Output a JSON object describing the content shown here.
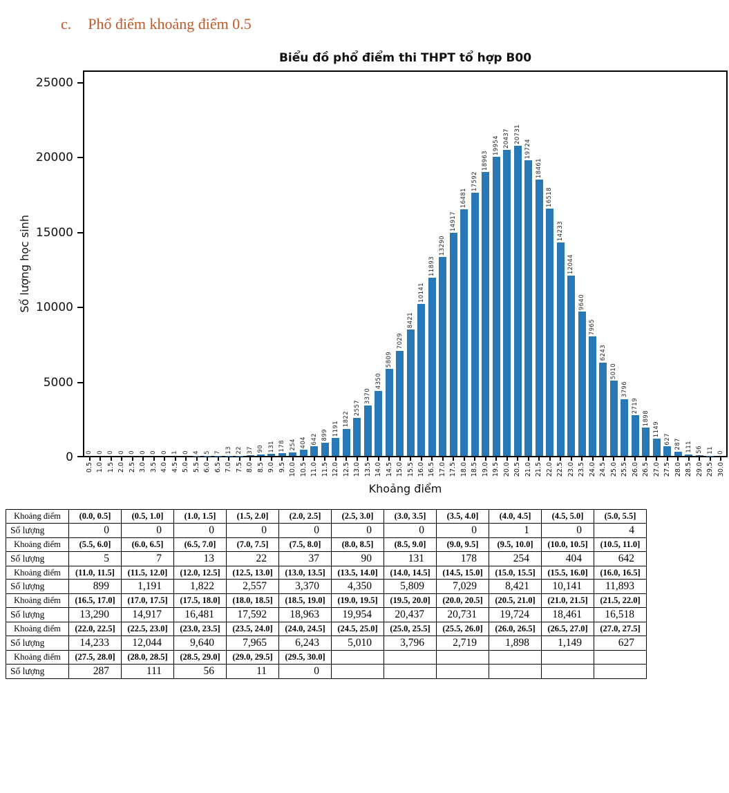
{
  "heading": {
    "index": "c.",
    "text": "Phổ điểm khoảng điểm 0.5"
  },
  "chart_data": {
    "type": "bar",
    "title": "Biểu đồ phổ điểm thi THPT tổ hợp B00",
    "xlabel": "Khoảng điểm",
    "ylabel": "Số lượng học sinh",
    "ylim": [
      0,
      25000
    ],
    "yticks": [
      0,
      5000,
      10000,
      15000,
      20000,
      25000
    ],
    "grid": false,
    "legend": false,
    "bar_color": "#2878b5",
    "categories": [
      "0.5",
      "1.0",
      "1.5",
      "2.0",
      "2.5",
      "3.0",
      "3.5",
      "4.0",
      "4.5",
      "5.0",
      "5.5",
      "6.0",
      "6.5",
      "7.0",
      "7.5",
      "8.0",
      "8.5",
      "9.0",
      "9.5",
      "10.0",
      "10.5",
      "11.0",
      "11.5",
      "12.0",
      "12.5",
      "13.0",
      "13.5",
      "14.0",
      "14.5",
      "15.0",
      "15.5",
      "16.0",
      "16.5",
      "17.0",
      "17.5",
      "18.0",
      "18.5",
      "19.0",
      "19.5",
      "20.0",
      "20.5",
      "21.0",
      "21.5",
      "22.0",
      "22.5",
      "23.0",
      "23.5",
      "24.0",
      "24.5",
      "25.0",
      "25.5",
      "26.0",
      "26.5",
      "27.0",
      "27.5",
      "28.0",
      "28.5",
      "29.0",
      "29.5",
      "30.0"
    ],
    "values": [
      0,
      0,
      0,
      0,
      0,
      0,
      0,
      0,
      1,
      0,
      4,
      5,
      7,
      13,
      22,
      37,
      90,
      131,
      178,
      254,
      404,
      642,
      899,
      1191,
      1822,
      2557,
      3370,
      4350,
      5809,
      7029,
      8421,
      10141,
      11893,
      13290,
      14917,
      16481,
      17592,
      18963,
      19954,
      20437,
      20731,
      19724,
      18461,
      16518,
      14233,
      12044,
      9640,
      7965,
      6243,
      5010,
      3796,
      2719,
      1898,
      1149,
      627,
      287,
      111,
      56,
      11,
      0
    ]
  },
  "table": {
    "row_label_interval": "Khoảng điểm",
    "row_label_count": "Số lượng",
    "columns_per_group": 11,
    "intervals": [
      "(0.0, 0.5]",
      "(0.5, 1.0]",
      "(1.0, 1.5]",
      "(1.5, 2.0]",
      "(2.0, 2.5]",
      "(2.5, 3.0]",
      "(3.0, 3.5]",
      "(3.5, 4.0]",
      "(4.0, 4.5]",
      "(4.5, 5.0]",
      "(5.0, 5.5]",
      "(5.5, 6.0]",
      "(6.0, 6.5]",
      "(6.5, 7.0]",
      "(7.0, 7.5]",
      "(7.5, 8.0]",
      "(8.0, 8.5]",
      "(8.5, 9.0]",
      "(9.0, 9.5]",
      "(9.5, 10.0]",
      "(10.0, 10.5]",
      "(10.5, 11.0]",
      "(11.0, 11.5]",
      "(11.5, 12.0]",
      "(12.0, 12.5]",
      "(12.5, 13.0]",
      "(13.0, 13.5]",
      "(13.5, 14.0]",
      "(14.0, 14.5]",
      "(14.5, 15.0]",
      "(15.0, 15.5]",
      "(15.5, 16.0]",
      "(16.0, 16.5]",
      "(16.5, 17.0]",
      "(17.0, 17.5]",
      "(17.5, 18.0]",
      "(18.0, 18.5]",
      "(18.5, 19.0]",
      "(19.0, 19.5]",
      "(19.5, 20.0]",
      "(20.0, 20.5]",
      "(20.5, 21.0]",
      "(21.0, 21.5]",
      "(21.5, 22.0]",
      "(22.0, 22.5]",
      "(22.5, 23.0]",
      "(23.0, 23.5]",
      "(23.5, 24.0]",
      "(24.0, 24.5]",
      "(24.5, 25.0]",
      "(25.0, 25.5]",
      "(25.5, 26.0]",
      "(26.0, 26.5]",
      "(26.5, 27.0]",
      "(27.0, 27.5]",
      "(27.5, 28.0]",
      "(28.0, 28.5]",
      "(28.5, 29.0]",
      "(29.0, 29.5]",
      "(29.5, 30.0]"
    ],
    "counts": [
      0,
      0,
      0,
      0,
      0,
      0,
      0,
      0,
      1,
      0,
      4,
      5,
      7,
      13,
      22,
      37,
      90,
      131,
      178,
      254,
      404,
      642,
      899,
      1191,
      1822,
      2557,
      3370,
      4350,
      5809,
      7029,
      8421,
      10141,
      11893,
      13290,
      14917,
      16481,
      17592,
      18963,
      19954,
      20437,
      20731,
      19724,
      18461,
      16518,
      14233,
      12044,
      9640,
      7965,
      6243,
      5010,
      3796,
      2719,
      1898,
      1149,
      627,
      287,
      111,
      56,
      11,
      0
    ]
  }
}
